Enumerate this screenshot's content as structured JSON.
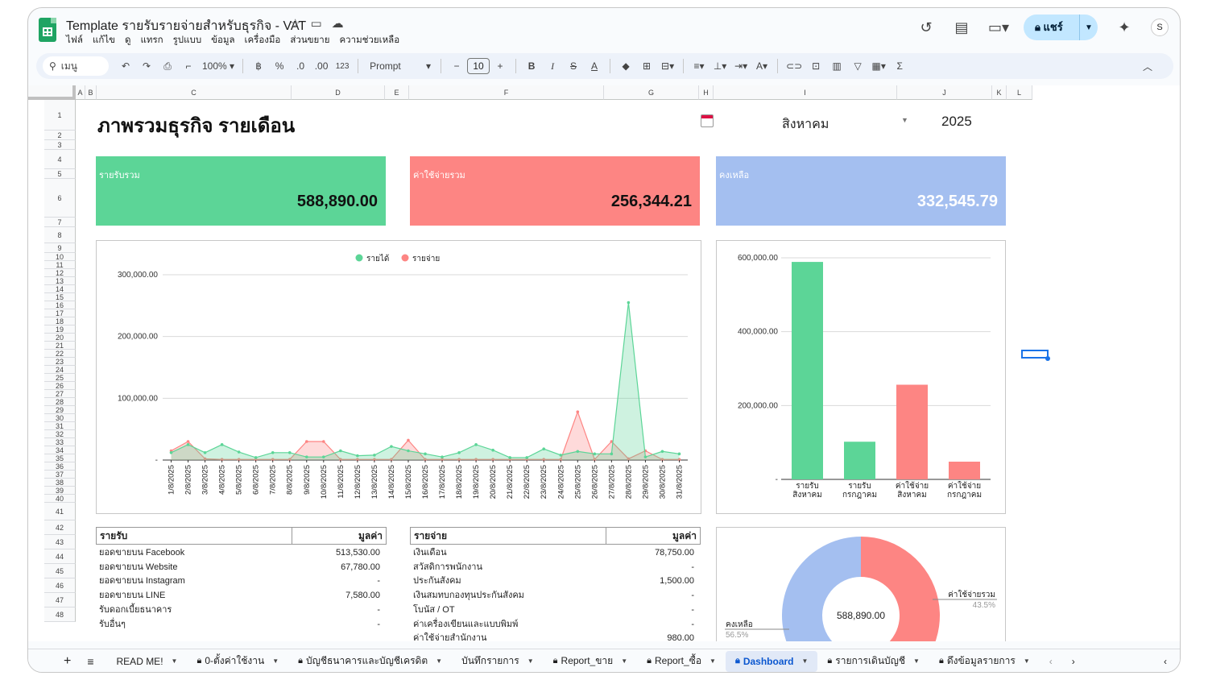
{
  "app": {
    "title": "Template รายรับรายจ่ายสำหรับธุรกิจ - VAT",
    "menu": [
      "ไฟล์",
      "แก้ไข",
      "ดู",
      "แทรก",
      "รูปแบบ",
      "ข้อมูล",
      "เครื่องมือ",
      "ส่วนขยาย",
      "ความช่วยเหลือ"
    ],
    "share_label": "แชร์"
  },
  "toolbar": {
    "search_label": "เมนู",
    "zoom": "100%",
    "currency": "฿",
    "percent": "%",
    "dec_decrease": ".0",
    "dec_increase": ".00",
    "number_format": "123",
    "font": "Prompt",
    "font_size": "10"
  },
  "columns": [
    "A",
    "B",
    "C",
    "D",
    "E",
    "F",
    "G",
    "H",
    "I",
    "J",
    "K",
    "L"
  ],
  "rows": [
    "1",
    "2",
    "3",
    "4",
    "5",
    "6",
    "7",
    "8",
    "9",
    "10",
    "11",
    "12",
    "13",
    "14",
    "15",
    "16",
    "17",
    "18",
    "19",
    "20",
    "21",
    "22",
    "23",
    "24",
    "25",
    "26",
    "27",
    "28",
    "29",
    "30",
    "31",
    "32",
    "33",
    "34",
    "35",
    "36",
    "37",
    "38",
    "39",
    "40",
    "41",
    "42",
    "43",
    "44",
    "45",
    "46",
    "47",
    "48"
  ],
  "dashboard": {
    "title": "ภาพรวมธุรกิจ รายเดือน",
    "month": "สิงหาคม",
    "year": "2025",
    "cards": [
      {
        "label": "รายรับรวม",
        "value": "588,890.00",
        "color": "#5cd597"
      },
      {
        "label": "ค่าใช้จ่ายรวม",
        "value": "256,344.21",
        "color": "#fd8583"
      },
      {
        "label": "คงเหลือ",
        "value": "332,545.79",
        "color": "#a4bff0"
      }
    ]
  },
  "chart_data": [
    {
      "type": "area",
      "legend": [
        "รายได้",
        "รายจ่าย"
      ],
      "legend_position": "top",
      "x": [
        "1/8/2025",
        "2/8/2025",
        "3/8/2025",
        "4/8/2025",
        "5/8/2025",
        "6/8/2025",
        "7/8/2025",
        "8/8/2025",
        "9/8/2025",
        "10/8/2025",
        "11/8/2025",
        "12/8/2025",
        "13/8/2025",
        "14/8/2025",
        "15/8/2025",
        "16/8/2025",
        "17/8/2025",
        "18/8/2025",
        "19/8/2025",
        "20/8/2025",
        "21/8/2025",
        "22/8/2025",
        "23/8/2025",
        "24/8/2025",
        "25/8/2025",
        "26/8/2025",
        "27/8/2025",
        "28/8/2025",
        "29/8/2025",
        "30/8/2025",
        "31/8/2025"
      ],
      "series": [
        {
          "name": "รายได้",
          "color": "#5cd597",
          "values": [
            12000,
            25000,
            12000,
            25000,
            13000,
            4000,
            12000,
            12000,
            5000,
            5000,
            15000,
            7000,
            8000,
            22000,
            15000,
            10000,
            5000,
            12000,
            25000,
            16000,
            4000,
            4000,
            18000,
            8000,
            14000,
            10000,
            10000,
            255000,
            5000,
            14000,
            10000
          ]
        },
        {
          "name": "รายจ่าย",
          "color": "#fd8583",
          "values": [
            15000,
            30000,
            2000,
            1000,
            1000,
            1000,
            1000,
            1000,
            30000,
            30000,
            1000,
            1000,
            1000,
            1000,
            32000,
            1000,
            1000,
            1000,
            1000,
            1000,
            1000,
            1000,
            1000,
            1000,
            78000,
            1000,
            30000,
            2000,
            15000,
            1000,
            1000
          ]
        }
      ],
      "yticks": [
        "300,000.00",
        "200,000.00",
        "100,000.00",
        "-"
      ],
      "ylim": [
        0,
        300000
      ],
      "grid": true
    },
    {
      "type": "bar",
      "categories": [
        [
          "รายรับ",
          "สิงหาคม"
        ],
        [
          "รายรับ",
          "กรกฎาคม"
        ],
        [
          "ค่าใช้จ่าย",
          "สิงหาคม"
        ],
        [
          "ค่าใช้จ่าย",
          "กรกฎาคม"
        ]
      ],
      "values": [
        588890,
        102000,
        256344.21,
        48000
      ],
      "colors": [
        "#5cd597",
        "#5cd597",
        "#fd8583",
        "#fd8583"
      ],
      "yticks": [
        "600,000.00",
        "400,000.00",
        "200,000.00",
        "-"
      ],
      "ylim": [
        0,
        600000
      ],
      "grid": true
    },
    {
      "type": "pie",
      "donut": true,
      "center_label": "588,890.00",
      "slices": [
        {
          "name": "ค่าใช้จ่ายรวม",
          "percent": "43.5%",
          "value": 43.5,
          "color": "#fd8583"
        },
        {
          "name": "คงเหลือ",
          "percent": "56.5%",
          "value": 56.5,
          "color": "#a4bff0"
        }
      ]
    }
  ],
  "income_table": {
    "header": [
      "รายรับ",
      "มูลค่า"
    ],
    "rows": [
      [
        "ยอดขายบน Facebook",
        "513,530.00"
      ],
      [
        "ยอดขายบน Website",
        "67,780.00"
      ],
      [
        "ยอดขายบน Instagram",
        "-"
      ],
      [
        "ยอดขายบน LINE",
        "7,580.00"
      ],
      [
        "รับดอกเบี้ยธนาคาร",
        "-"
      ],
      [
        "รับอื่นๆ",
        "-"
      ]
    ]
  },
  "expense_table": {
    "header": [
      "รายจ่าย",
      "มูลค่า"
    ],
    "rows": [
      [
        "เงินเดือน",
        "78,750.00"
      ],
      [
        "สวัสดิการพนักงาน",
        "-"
      ],
      [
        "ประกันสังคม",
        "1,500.00"
      ],
      [
        "เงินสมทบกองทุนประกันสังคม",
        "-"
      ],
      [
        "โบนัส / OT",
        "-"
      ],
      [
        "ค่าเครื่องเขียนและแบบพิมพ์",
        "-"
      ],
      [
        "ค่าใช้จ่ายสำนักงาน",
        "980.00"
      ]
    ]
  },
  "sheet_tabs": [
    {
      "label": "READ ME!",
      "locked": false,
      "active": false
    },
    {
      "label": "0-ตั้งค่าใช้งาน",
      "locked": true,
      "active": false
    },
    {
      "label": "บัญชีธนาคารและบัญชีเครดิต",
      "locked": true,
      "active": false
    },
    {
      "label": "บันทึกรายการ",
      "locked": false,
      "active": false
    },
    {
      "label": "Report_ขาย",
      "locked": true,
      "active": false
    },
    {
      "label": "Report_ซื้อ",
      "locked": true,
      "active": false
    },
    {
      "label": "Dashboard",
      "locked": true,
      "active": true
    },
    {
      "label": "รายการเดินบัญชี",
      "locked": true,
      "active": false
    },
    {
      "label": "ดึงข้อมูลรายการ",
      "locked": true,
      "active": false
    }
  ]
}
